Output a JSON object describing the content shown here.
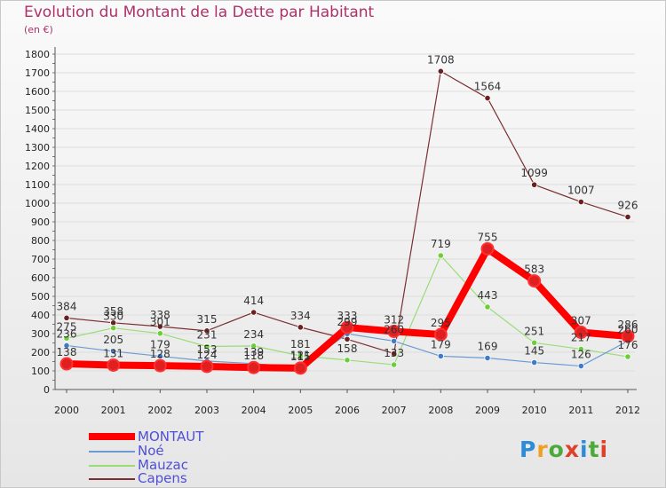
{
  "header": {
    "title": "Evolution du Montant de la Dette par Habitant",
    "unit": "(en €)"
  },
  "logo": {
    "text": "Proxiti",
    "colors": [
      "#2e8bd8",
      "#f0a020",
      "#4caa3a",
      "#e0402a",
      "#2e8bd8",
      "#4caa3a",
      "#e0402a"
    ]
  },
  "colors": {
    "title": "#b0306a",
    "legend_text": "#4f4fd8",
    "axis": "#555555",
    "grid": "#dddddd"
  },
  "chart_data": {
    "type": "line",
    "title": "Evolution du Montant de la Dette par Habitant",
    "subtitle": "(en €)",
    "xlabel": "",
    "ylabel": "",
    "ylim": [
      0,
      1800
    ],
    "yticks": [
      0,
      100,
      200,
      300,
      400,
      500,
      600,
      700,
      800,
      900,
      1000,
      1100,
      1200,
      1300,
      1400,
      1500,
      1600,
      1700,
      1800
    ],
    "categories": [
      "2000",
      "2001",
      "2002",
      "2003",
      "2004",
      "2005",
      "2006",
      "2007",
      "2008",
      "2009",
      "2010",
      "2011",
      "2012"
    ],
    "grid": true,
    "legend_position": "bottom-left",
    "series": [
      {
        "name": "MONTAUT",
        "color": "#ff0000",
        "width": 8,
        "point_fill": "#e02020",
        "values": [
          138,
          131,
          128,
          124,
          118,
          115,
          333,
          312,
          295,
          755,
          583,
          307,
          286
        ]
      },
      {
        "name": "Noé",
        "color": "#6b9bd2",
        "width": 1.2,
        "point_fill": "#3d7cc9",
        "values": [
          236,
          205,
          179,
          153,
          139,
          121,
          299,
          260,
          179,
          169,
          145,
          126,
          260
        ]
      },
      {
        "name": "Mauzac",
        "color": "#99dd77",
        "width": 1.2,
        "point_fill": "#6ccf3a",
        "values": [
          275,
          330,
          301,
          231,
          234,
          181,
          158,
          133,
          719,
          443,
          251,
          217,
          176
        ]
      },
      {
        "name": "Capens",
        "color": "#7a3030",
        "width": 1.2,
        "point_fill": "#6b1f1f",
        "values": [
          384,
          358,
          338,
          315,
          414,
          334,
          270,
          193,
          1708,
          1564,
          1099,
          1007,
          926
        ]
      }
    ],
    "data_labels": [
      {
        "series": "MONTAUT",
        "values": [
          "138",
          "131",
          "128",
          "124",
          "118",
          "115",
          "333",
          "312",
          "295",
          "755",
          "583",
          "307",
          "286"
        ]
      },
      {
        "series": "Noé",
        "values": [
          "236",
          "205",
          "179",
          "153",
          "139",
          "121",
          "299",
          "260",
          "179",
          "169",
          "145",
          "126",
          "260"
        ]
      },
      {
        "series": "Mauzac",
        "values": [
          "275",
          "330",
          "301",
          "231",
          "234",
          "181",
          "158",
          "133",
          "719",
          "443",
          "251",
          "217",
          "176"
        ]
      },
      {
        "series": "Capens",
        "values": [
          "384",
          "358",
          "338",
          "315",
          "414",
          "334",
          "",
          "",
          "1708",
          "1564",
          "1099",
          "1007",
          "926"
        ]
      }
    ]
  }
}
